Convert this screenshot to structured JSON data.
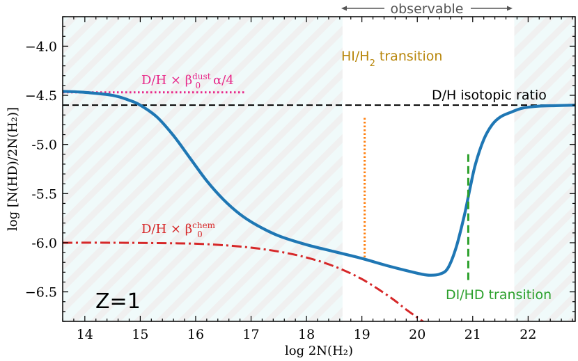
{
  "chart_data": {
    "type": "line",
    "xlabel": "log 2N(H₂)",
    "ylabel": "log [N(HD)/2N(H₂)]",
    "xlim": [
      13.6,
      22.85
    ],
    "ylim": [
      -6.8,
      -3.7
    ],
    "x_ticks": [
      14,
      15,
      16,
      17,
      18,
      19,
      20,
      21,
      22
    ],
    "y_ticks": [
      -4.0,
      -4.5,
      -5.0,
      -5.5,
      -6.0,
      -6.5
    ],
    "y_tick_labels": [
      "−4.0",
      "−4.5",
      "-5.0",
      "-5.5",
      "-6.0",
      "−6.5"
    ],
    "grid": false,
    "unshaded_region_x": [
      18.65,
      21.75
    ],
    "series": [
      {
        "name": "N(HD)/2N(H2)",
        "color": "#1f77b4",
        "style": "solid",
        "x": [
          13.6,
          14.0,
          14.5,
          14.8,
          15.0,
          15.3,
          15.6,
          15.9,
          16.2,
          16.5,
          16.8,
          17.1,
          17.5,
          18.0,
          18.5,
          19.0,
          19.5,
          20.0,
          20.2,
          20.4,
          20.55,
          20.7,
          20.85,
          20.95,
          21.05,
          21.2,
          21.35,
          21.5,
          21.7,
          21.9,
          22.2,
          22.5,
          22.85
        ],
        "y": [
          -4.46,
          -4.47,
          -4.5,
          -4.55,
          -4.6,
          -4.72,
          -4.91,
          -5.14,
          -5.37,
          -5.56,
          -5.71,
          -5.82,
          -5.93,
          -6.02,
          -6.09,
          -6.16,
          -6.24,
          -6.31,
          -6.33,
          -6.32,
          -6.26,
          -6.05,
          -5.72,
          -5.45,
          -5.2,
          -4.95,
          -4.8,
          -4.72,
          -4.67,
          -4.63,
          -4.61,
          -4.605,
          -4.6
        ]
      },
      {
        "name": "D/H × β₀^chem",
        "color": "#d62728",
        "style": "dashdot",
        "x": [
          13.6,
          14.5,
          15.5,
          16.0,
          16.5,
          17.0,
          17.5,
          18.0,
          18.5,
          19.0,
          19.5,
          19.8,
          20.0,
          20.15
        ],
        "y": [
          -6.0,
          -6.0,
          -6.005,
          -6.01,
          -6.025,
          -6.05,
          -6.09,
          -6.15,
          -6.24,
          -6.37,
          -6.55,
          -6.68,
          -6.76,
          -6.82
        ]
      },
      {
        "name": "D/H × β₀^dust α/4",
        "color": "#e7298a",
        "style": "dotted",
        "x": [
          13.6,
          16.9
        ],
        "y": [
          -4.47,
          -4.47
        ]
      },
      {
        "name": "D/H isotopic ratio",
        "color": "#000000",
        "style": "dashed",
        "x": [
          13.6,
          22.85
        ],
        "y": [
          -4.6,
          -4.6
        ]
      },
      {
        "name": "HI/H2 transition",
        "color": "#ff7f0e",
        "style": "dotted",
        "x": [
          19.05,
          19.05
        ],
        "y": [
          -4.73,
          -6.16
        ]
      },
      {
        "name": "DI/HD transition",
        "color": "#2ca02c",
        "style": "dashed",
        "x": [
          20.92,
          20.92
        ],
        "y": [
          -5.1,
          -6.38
        ]
      }
    ],
    "annotations": {
      "observable": "observable",
      "hi_h2": "HI/H",
      "hi_h2_sub": "2",
      "hi_h2_tail": " transition",
      "dh_ratio": "D/H isotopic ratio",
      "di_hd": "DI/HD transition",
      "z_label": "Z=1",
      "dust_prefix": "D/H × β",
      "dust_sub": "0",
      "dust_sup": "dust",
      "dust_suffix": "α/4",
      "chem_prefix": "D/H × β",
      "chem_sub": "0",
      "chem_sup": "chem"
    },
    "colors": {
      "hatch_fill": "#f0fafa",
      "hatch_line": "#f0dada",
      "observable_text": "#555555",
      "hi_h2": "#b8860b",
      "dust": "#e7298a",
      "chem": "#d62728",
      "di_hd": "#2ca02c"
    }
  }
}
